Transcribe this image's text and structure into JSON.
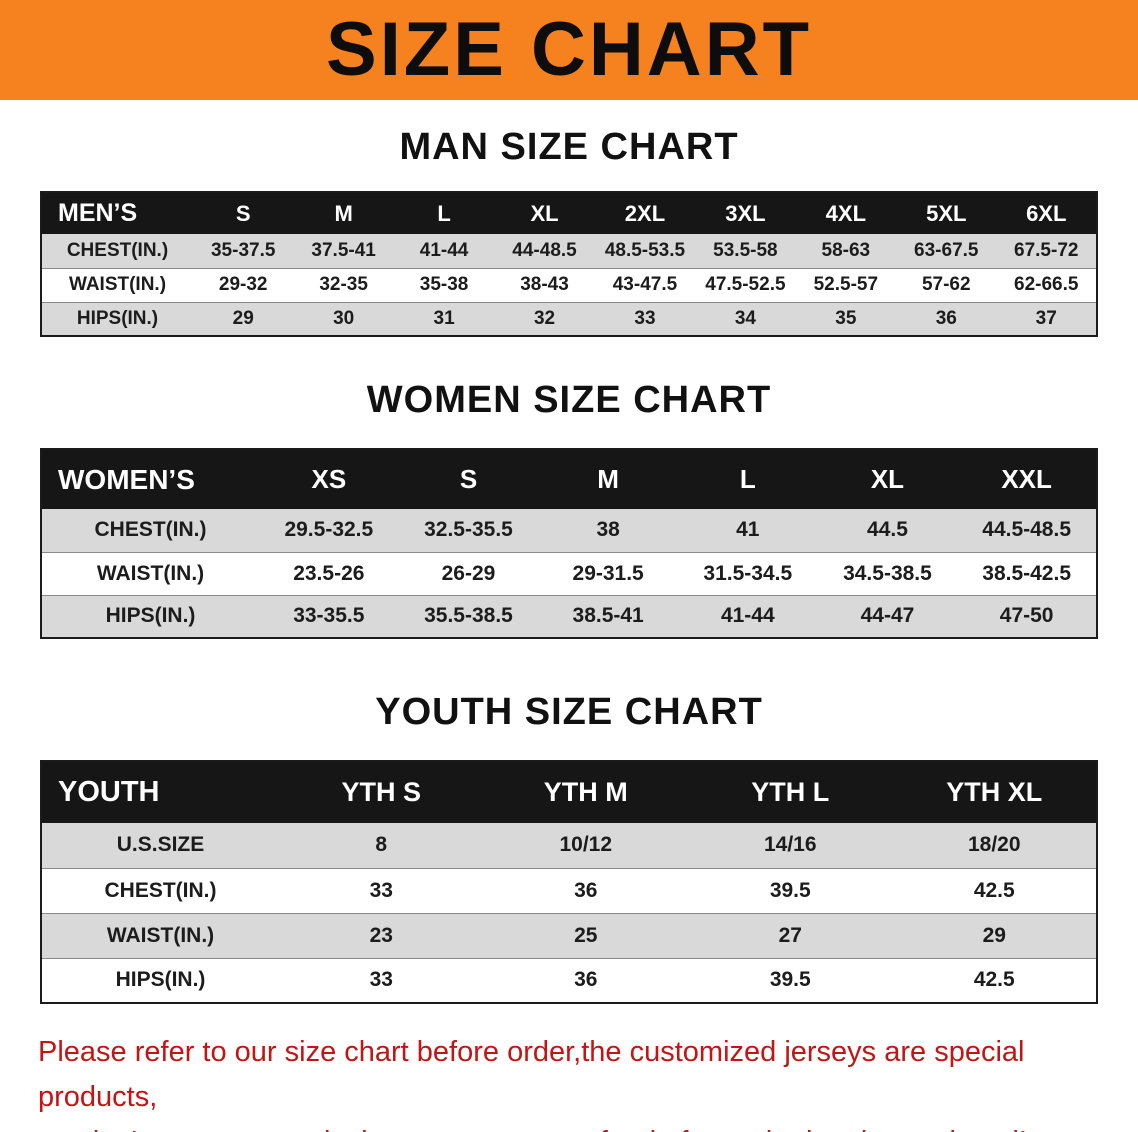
{
  "banner": {
    "title": "SIZE CHART"
  },
  "sections": [
    {
      "title": "MAN SIZE CHART",
      "table": {
        "header": [
          "MEN’S",
          "S",
          "M",
          "L",
          "XL",
          "2XL",
          "3XL",
          "4XL",
          "5XL",
          "6XL"
        ],
        "rows": [
          [
            "CHEST(IN.)",
            "35-37.5",
            "37.5-41",
            "41-44",
            "44-48.5",
            "48.5-53.5",
            "53.5-58",
            "58-63",
            "63-67.5",
            "67.5-72"
          ],
          [
            "WAIST(IN.)",
            "29-32",
            "32-35",
            "35-38",
            "38-43",
            "43-47.5",
            "47.5-52.5",
            "52.5-57",
            "57-62",
            "62-66.5"
          ],
          [
            "HIPS(IN.)",
            "29",
            "30",
            "31",
            "32",
            "33",
            "34",
            "35",
            "36",
            "37"
          ]
        ]
      }
    },
    {
      "title": "WOMEN SIZE CHART",
      "table": {
        "header": [
          "WOMEN’S",
          "XS",
          "S",
          "M",
          "L",
          "XL",
          "XXL"
        ],
        "rows": [
          [
            "CHEST(IN.)",
            "29.5-32.5",
            "32.5-35.5",
            "38",
            "41",
            "44.5",
            "44.5-48.5"
          ],
          [
            "WAIST(IN.)",
            "23.5-26",
            "26-29",
            "29-31.5",
            "31.5-34.5",
            "34.5-38.5",
            "38.5-42.5"
          ],
          [
            "HIPS(IN.)",
            "33-35.5",
            "35.5-38.5",
            "38.5-41",
            "41-44",
            "44-47",
            "47-50"
          ]
        ]
      }
    },
    {
      "title": "YOUTH SIZE CHART",
      "table": {
        "header": [
          "YOUTH",
          "YTH S",
          "YTH M",
          "YTH L",
          "YTH XL"
        ],
        "rows": [
          [
            "U.S.SIZE",
            "8",
            "10/12",
            "14/16",
            "18/20"
          ],
          [
            "CHEST(IN.)",
            "33",
            "36",
            "39.5",
            "42.5"
          ],
          [
            "WAIST(IN.)",
            "23",
            "25",
            "27",
            "29"
          ],
          [
            "HIPS(IN.)",
            "33",
            "36",
            "39.5",
            "42.5"
          ]
        ]
      }
    }
  ],
  "footer": {
    "line1": "Please refer to our size chart before order,the customized jerseys are special products,",
    "line2": "we don't accept cancel, change, teturn or refund after order has been placed!"
  },
  "colors": {
    "banner-orange": "#f5821f",
    "header-black": "#161616",
    "row-gray": "#d9d9d9",
    "footer-red": "#c41414"
  }
}
